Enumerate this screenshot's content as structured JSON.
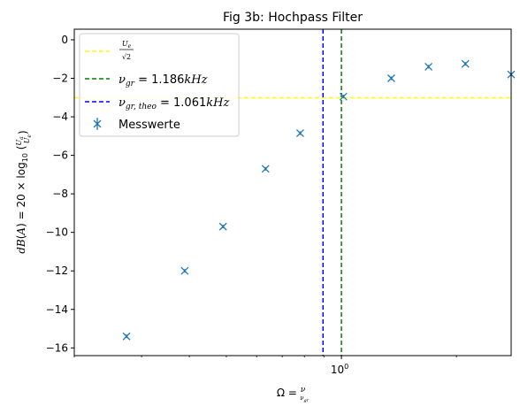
{
  "chart_data": {
    "type": "scatter",
    "title": "Fig 3b: Hochpass Filter",
    "xlabel": "Ω = ν / ν_gr",
    "ylabel": "dB(A) = 20 × log10(Ua/Ue)",
    "xscale": "log",
    "xlim": [
      0.2,
      2.78
    ],
    "ylim": [
      -16.4,
      0.55
    ],
    "x_ticks": [
      {
        "value": 1,
        "label": "10^0"
      }
    ],
    "y_ticks": [
      0,
      -2,
      -4,
      -6,
      -8,
      -10,
      -12,
      -14,
      -16
    ],
    "grid": false,
    "legend_position": "top-left",
    "series": [
      {
        "name": "Messwerte",
        "marker": "x",
        "color": "#1f77b4",
        "x": [
          0.274,
          0.389,
          0.49,
          0.633,
          0.78,
          1.012,
          1.35,
          1.69,
          2.11,
          2.78
        ],
        "y": [
          -15.4,
          -12.0,
          -9.7,
          -6.7,
          -4.85,
          -2.95,
          -2.0,
          -1.4,
          -1.25,
          -1.8
        ]
      }
    ],
    "reference_lines": [
      {
        "orientation": "horizontal",
        "value": -3.01,
        "color": "#ffff00",
        "style": "dashed",
        "label": "U_e/√2"
      },
      {
        "orientation": "vertical",
        "value": 1.0,
        "color": "#008000",
        "style": "dashed",
        "label": "ν_gr = 1.186kHz"
      },
      {
        "orientation": "vertical",
        "value": 0.895,
        "color": "#0000ff",
        "style": "dashed",
        "label": "ν_gr,theo = 1.061kHz"
      }
    ]
  }
}
